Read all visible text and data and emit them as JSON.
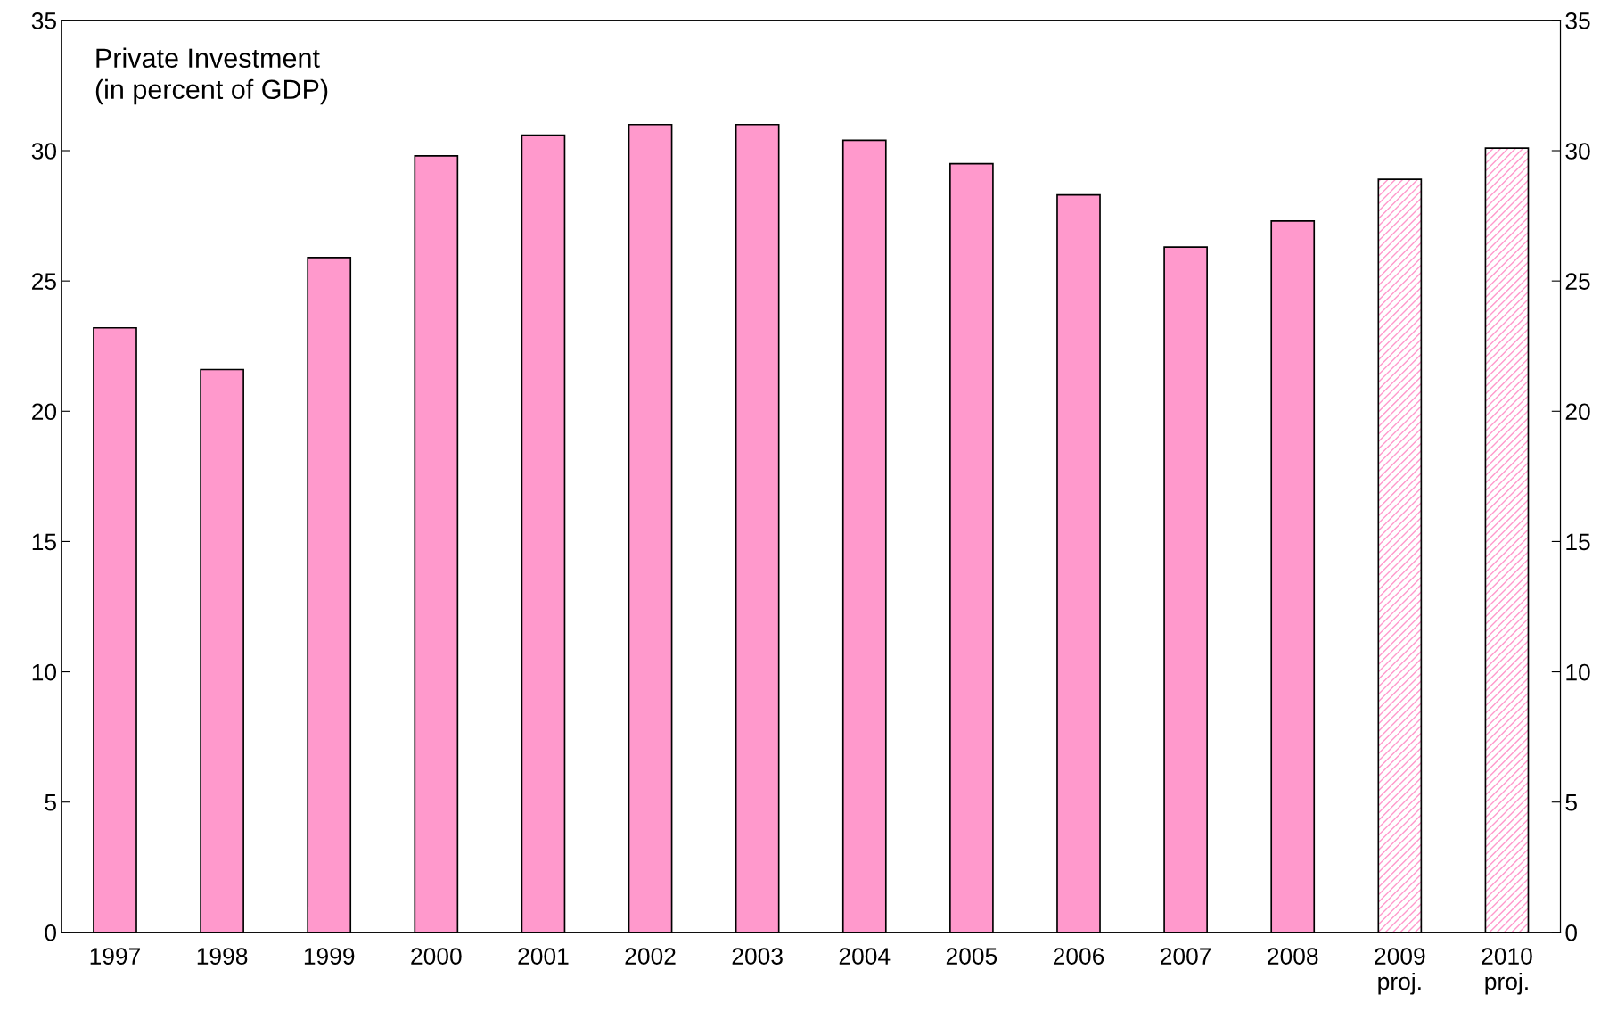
{
  "chart_data": {
    "type": "bar",
    "title": "Private Investment\n(in percent of GDP)",
    "categories": [
      "1997",
      "1998",
      "1999",
      "2000",
      "2001",
      "2002",
      "2003",
      "2004",
      "2005",
      "2006",
      "2007",
      "2008",
      "2009\nproj.",
      "2010\nproj."
    ],
    "series": [
      {
        "color": "#ff99cc",
        "values": [
          23.2,
          21.6,
          25.9,
          29.8,
          30.6,
          31.0,
          31.0,
          30.4,
          29.5,
          28.3,
          26.3,
          27.3,
          null,
          null
        ]
      },
      {
        "color": "#ff99cc",
        "values": [
          null,
          null,
          null,
          null,
          null,
          null,
          null,
          null,
          null,
          null,
          null,
          null,
          28.9,
          30.1
        ]
      }
    ],
    "ylim": [
      0,
      35
    ],
    "yticks": [
      0,
      5,
      10,
      15,
      20,
      25,
      30,
      35
    ],
    "y2lim": [
      0,
      35
    ],
    "y2ticks": [
      0,
      5,
      10,
      15,
      20,
      25,
      30,
      35
    ],
    "grid": false,
    "legend": false
  }
}
